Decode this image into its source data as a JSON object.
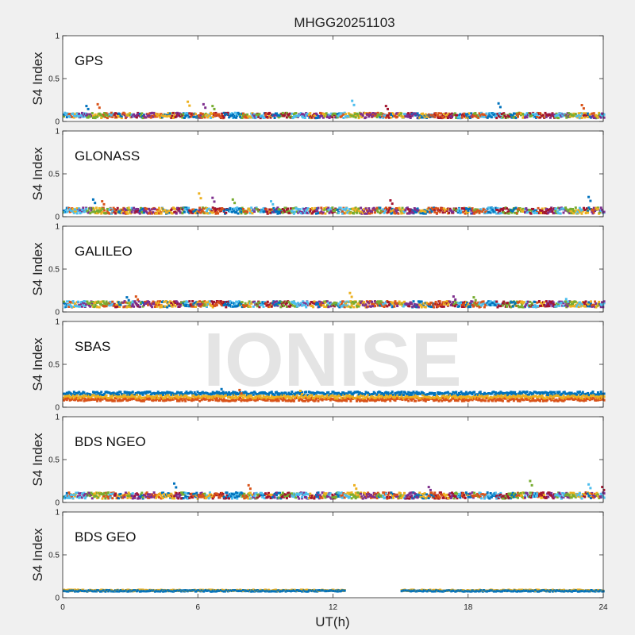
{
  "watermark": "IONISE",
  "chart_data": {
    "type": "scatter",
    "title": "MHGG20251103",
    "xlabel": "UT(h)",
    "ylabel": "S4 Index",
    "xlim": [
      0,
      24
    ],
    "xticks": [
      0,
      6,
      12,
      18,
      24
    ],
    "ylim": [
      0,
      1
    ],
    "yticks": [
      0,
      0.5,
      1
    ],
    "ytick_labels": [
      "0",
      "0.5",
      "1"
    ],
    "grid": false,
    "color_palette": [
      "#0072BD",
      "#D95319",
      "#EDB120",
      "#7E2F8E",
      "#77AC30",
      "#4DBEEE",
      "#A2142F"
    ],
    "panels": [
      {
        "label": "GPS",
        "colors": [
          "#0072BD",
          "#D95319",
          "#EDB120",
          "#7E2F8E",
          "#77AC30",
          "#4DBEEE",
          "#A2142F"
        ],
        "segments": [
          [
            0,
            24
          ]
        ],
        "baseline": 0.07,
        "noise": 0.03,
        "spikes": [
          [
            1.0,
            0.18
          ],
          [
            1.5,
            0.2
          ],
          [
            5.5,
            0.23
          ],
          [
            6.2,
            0.2
          ],
          [
            6.6,
            0.18
          ],
          [
            12.8,
            0.24
          ],
          [
            14.3,
            0.18
          ],
          [
            19.3,
            0.21
          ],
          [
            23.0,
            0.19
          ]
        ]
      },
      {
        "label": "GLONASS",
        "colors": [
          "#0072BD",
          "#D95319",
          "#EDB120",
          "#7E2F8E",
          "#77AC30",
          "#4DBEEE",
          "#A2142F"
        ],
        "segments": [
          [
            0,
            24
          ]
        ],
        "baseline": 0.07,
        "noise": 0.035,
        "spikes": [
          [
            1.3,
            0.2
          ],
          [
            1.7,
            0.18
          ],
          [
            6.0,
            0.27
          ],
          [
            6.6,
            0.22
          ],
          [
            7.5,
            0.2
          ],
          [
            9.2,
            0.18
          ],
          [
            14.5,
            0.19
          ],
          [
            23.3,
            0.23
          ]
        ]
      },
      {
        "label": "GALILEO",
        "colors": [
          "#0072BD",
          "#D95319",
          "#EDB120",
          "#7E2F8E",
          "#77AC30",
          "#4DBEEE",
          "#A2142F"
        ],
        "segments": [
          [
            0,
            24
          ]
        ],
        "baseline": 0.09,
        "noise": 0.035,
        "spikes": [
          [
            2.8,
            0.17
          ],
          [
            3.2,
            0.18
          ],
          [
            12.7,
            0.22
          ],
          [
            17.3,
            0.18
          ],
          [
            18.2,
            0.17
          ],
          [
            22.3,
            0.15
          ]
        ]
      },
      {
        "label": "SBAS",
        "colors": [
          "#0072BD",
          "#D95319",
          "#EDB120"
        ],
        "segments": [
          [
            0,
            24
          ]
        ],
        "baseline": 0.11,
        "noise": 0.02,
        "series_levels": [
          0.16,
          0.09,
          0.12
        ],
        "spikes": [
          [
            7.0,
            0.21
          ],
          [
            7.8,
            0.2
          ],
          [
            10.5,
            0.19
          ],
          [
            15.0,
            0.18
          ]
        ]
      },
      {
        "label": "BDS NGEO",
        "colors": [
          "#0072BD",
          "#D95319",
          "#EDB120",
          "#7E2F8E",
          "#77AC30",
          "#4DBEEE",
          "#A2142F"
        ],
        "segments": [
          [
            0,
            24
          ]
        ],
        "baseline": 0.08,
        "noise": 0.035,
        "spikes": [
          [
            4.9,
            0.22
          ],
          [
            8.2,
            0.2
          ],
          [
            12.9,
            0.2
          ],
          [
            16.2,
            0.18
          ],
          [
            20.7,
            0.25
          ],
          [
            23.3,
            0.21
          ],
          [
            23.9,
            0.18
          ]
        ]
      },
      {
        "label": "BDS GEO",
        "colors": [
          "#EDB120",
          "#0072BD"
        ],
        "segments": [
          [
            0,
            12.5
          ],
          [
            15.0,
            24
          ]
        ],
        "baseline": 0.08,
        "noise": 0.008,
        "series_levels": [
          0.085,
          0.08
        ],
        "spikes": []
      }
    ]
  }
}
